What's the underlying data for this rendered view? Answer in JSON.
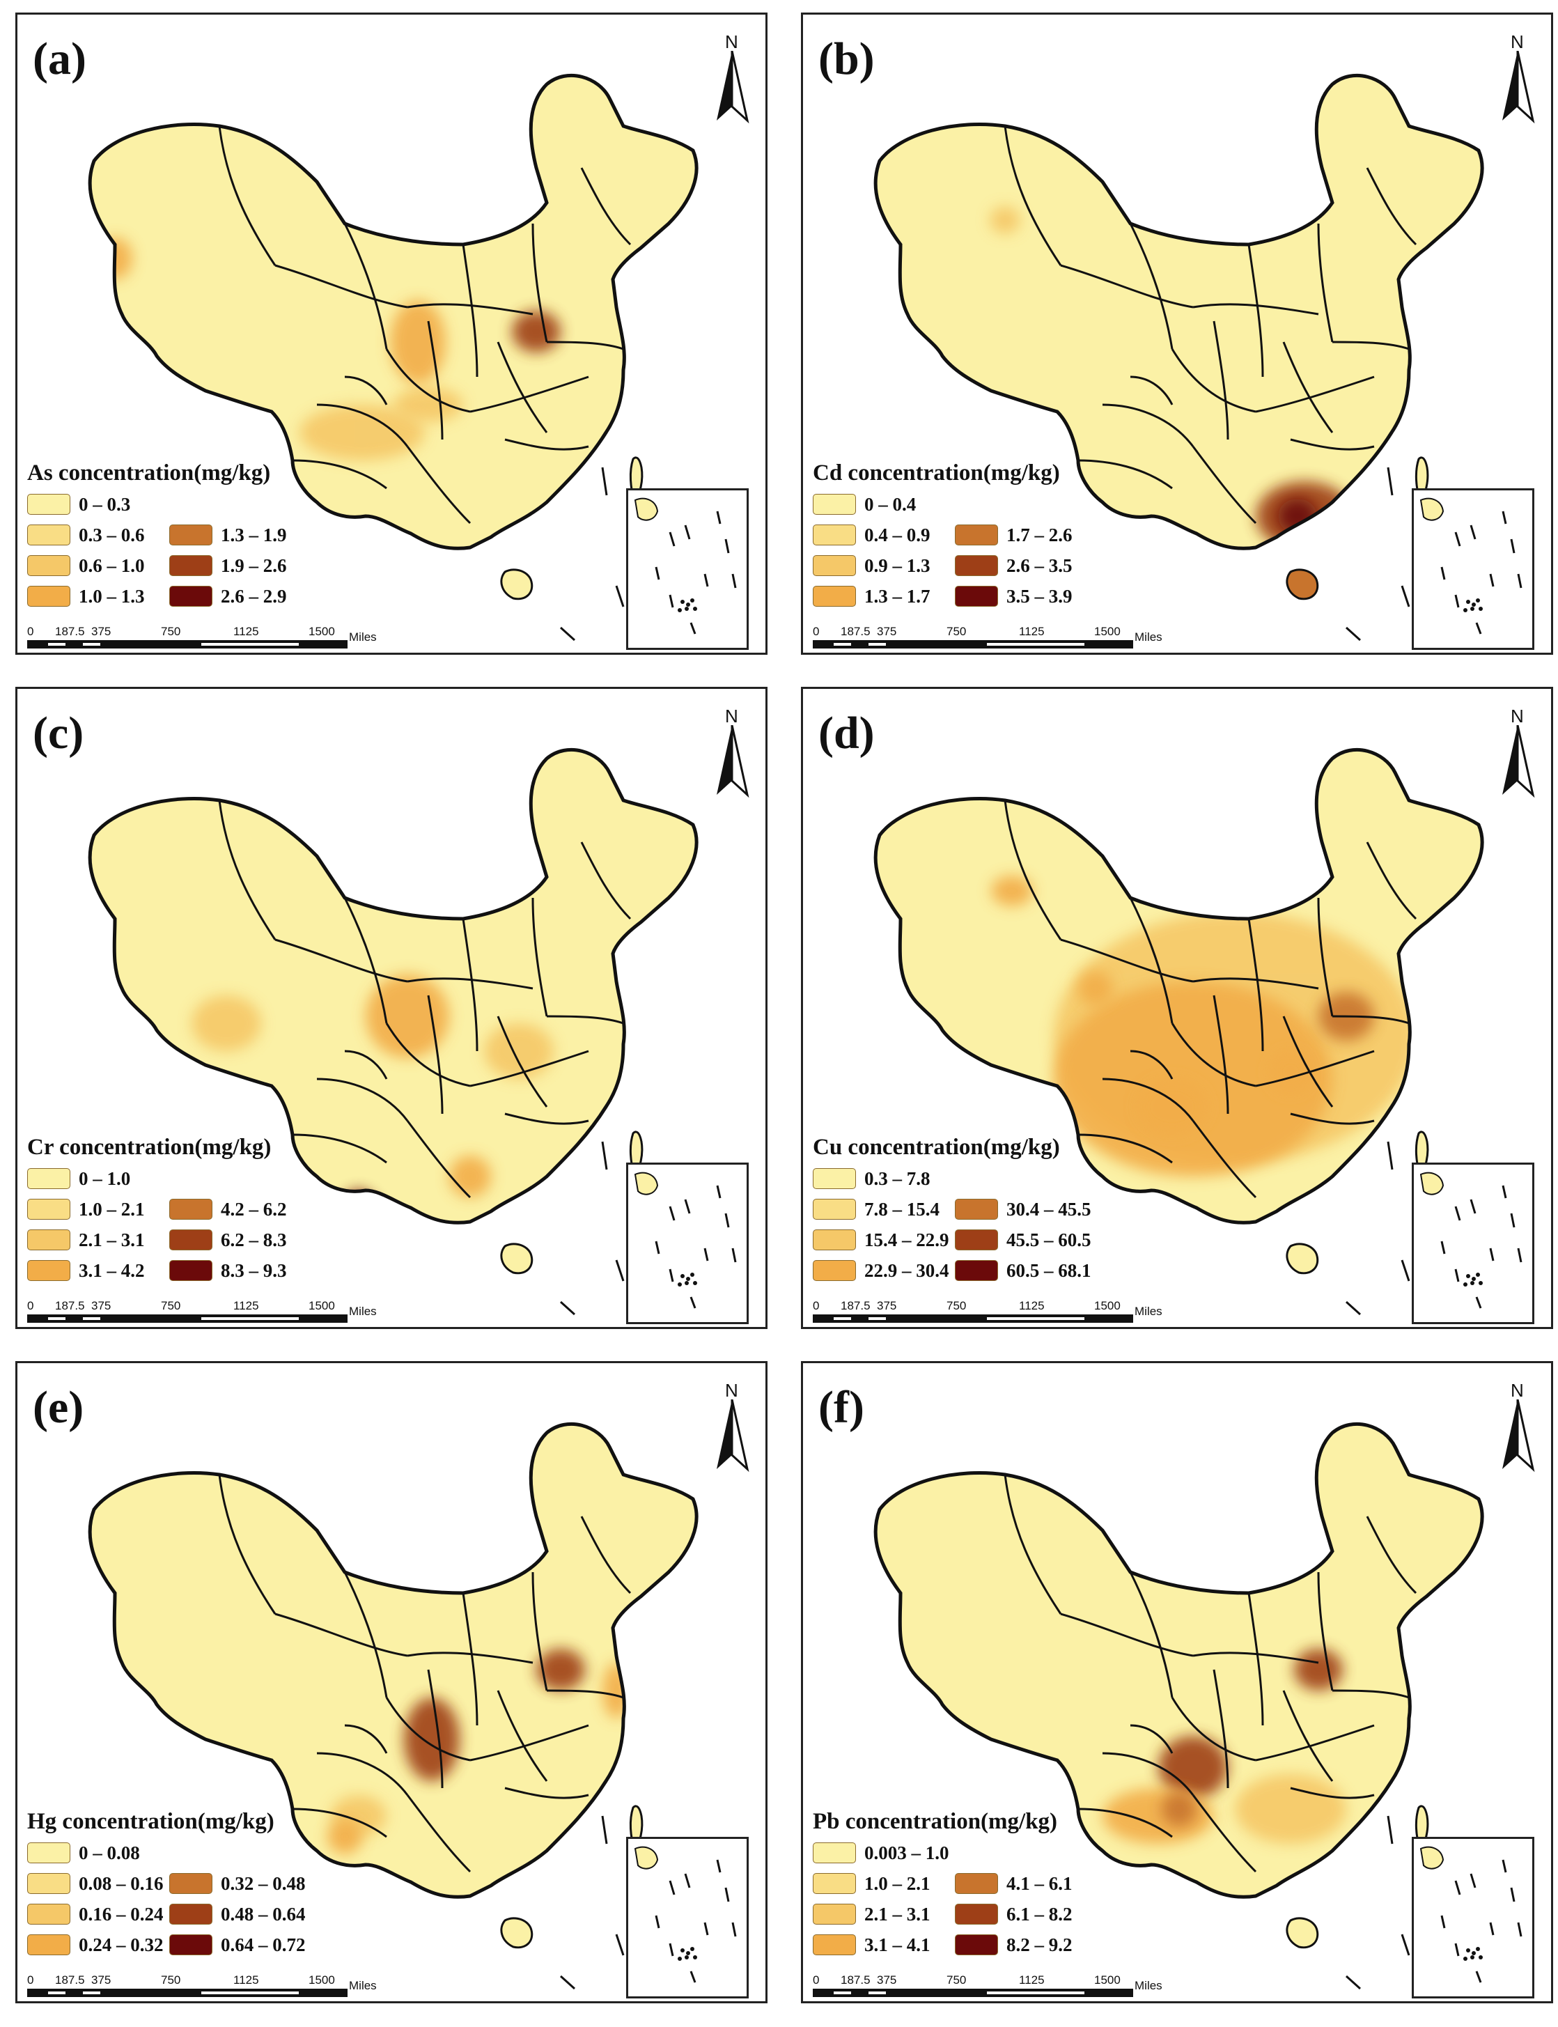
{
  "colors": {
    "base": "#fbf1a6",
    "outline": "#111111",
    "panel_border": "#222222",
    "scale": [
      "#fbf1a6",
      "#f9dd85",
      "#f5c868",
      "#f2ad48",
      "#c8742d",
      "#9e3f17",
      "#6b0a0a"
    ]
  },
  "map_common": {
    "north": "N",
    "scale_ticks": [
      "0",
      "187.5",
      "375",
      "750",
      "1125",
      "1500"
    ],
    "scale_unit": "Miles"
  },
  "panels": [
    {
      "label": "(a)",
      "legend_title": "As concentration(mg/kg)",
      "classes": [
        "0 – 0.3",
        "0.3 – 0.6",
        "0.6 – 1.0",
        "1.0 – 1.3",
        "1.3 – 1.9",
        "1.9 – 2.6",
        "2.6 – 2.9"
      ]
    },
    {
      "label": "(b)",
      "legend_title": "Cd concentration(mg/kg)",
      "classes": [
        "0 – 0.4",
        "0.4 – 0.9",
        "0.9 – 1.3",
        "1.3 – 1.7",
        "1.7 – 2.6",
        "2.6 – 3.5",
        "3.5 – 3.9"
      ]
    },
    {
      "label": "(c)",
      "legend_title": "Cr concentration(mg/kg)",
      "classes": [
        "0 – 1.0",
        "1.0 – 2.1",
        "2.1 – 3.1",
        "3.1 – 4.2",
        "4.2 – 6.2",
        "6.2 – 8.3",
        "8.3 – 9.3"
      ]
    },
    {
      "label": "(d)",
      "legend_title": "Cu concentration(mg/kg)",
      "classes": [
        "0.3 – 7.8",
        "7.8 – 15.4",
        "15.4 – 22.9",
        "22.9 – 30.4",
        "30.4 – 45.5",
        "45.5 – 60.5",
        "60.5 – 68.1"
      ]
    },
    {
      "label": "(e)",
      "legend_title": "Hg concentration(mg/kg)",
      "classes": [
        "0 – 0.08",
        "0.08 – 0.16",
        "0.16 – 0.24",
        "0.24 – 0.32",
        "0.32 – 0.48",
        "0.48 – 0.64",
        "0.64 – 0.72"
      ]
    },
    {
      "label": "(f)",
      "legend_title": "Pb concentration(mg/kg)",
      "classes": [
        "0.003 – 1.0",
        "1.0 – 2.1",
        "2.1 – 3.1",
        "3.1 – 4.1",
        "4.1 – 6.1",
        "6.1 – 8.2",
        "8.2 – 9.2"
      ]
    }
  ]
}
